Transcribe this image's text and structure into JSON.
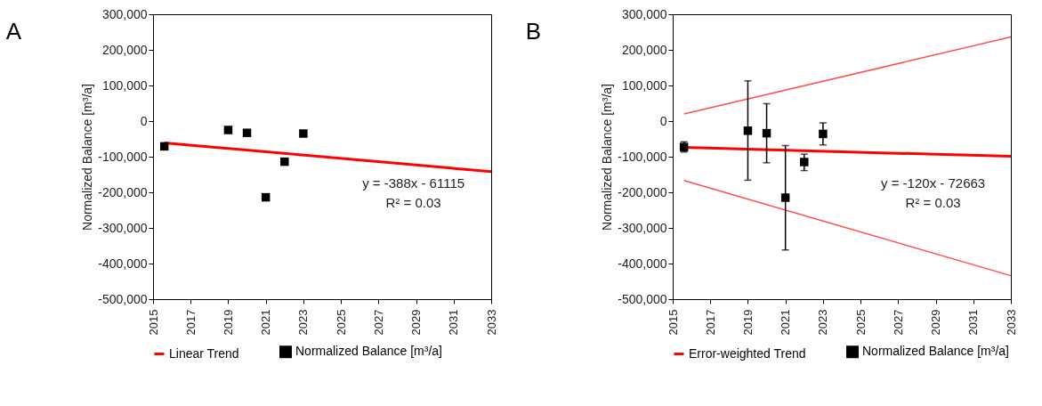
{
  "chart_data": [
    {
      "type": "scatter",
      "title": "A",
      "ylabel": "Normalized Balance [m³/a]",
      "xlim": [
        2015,
        2033
      ],
      "xticks": [
        2015,
        2017,
        2019,
        2021,
        2023,
        2025,
        2027,
        2029,
        2031,
        2033
      ],
      "ylim": [
        -500000,
        300000
      ],
      "yticks": [
        {
          "value": -500000,
          "label": "-500,000"
        },
        {
          "value": -400000,
          "label": "-400,000"
        },
        {
          "value": -300000,
          "label": "-300,000"
        },
        {
          "value": -200000,
          "label": "-200,000"
        },
        {
          "value": -100000,
          "label": "-100,000"
        },
        0,
        {
          "value": 100000,
          "label": "100,000"
        },
        {
          "value": 200000,
          "label": "200,000"
        },
        {
          "value": 300000,
          "label": "300,000"
        }
      ],
      "legend": "bottom",
      "grid": false,
      "annotations": [
        "y = -388x - 61115",
        "R² = 0.03"
      ],
      "series": [
        {
          "name": "Linear Trend",
          "type": "line",
          "color": "#ff0000",
          "x": [
            2015.6,
            2033
          ],
          "values": [
            -61000,
            -142000
          ]
        },
        {
          "name": "Normalized Balance [m³/a]",
          "color": "#000000",
          "marker": "square",
          "x": [
            2015.6,
            2019,
            2020,
            2021,
            2022,
            2023
          ],
          "values": [
            -71000,
            -25000,
            -33000,
            -214000,
            -114000,
            -35000
          ]
        }
      ]
    },
    {
      "type": "scatter",
      "title": "B",
      "ylabel": "Normalized Balance [m³/a]",
      "xlim": [
        2015,
        2033
      ],
      "xticks": [
        2015,
        2017,
        2019,
        2021,
        2023,
        2025,
        2027,
        2029,
        2031,
        2033
      ],
      "ylim": [
        -500000,
        300000
      ],
      "yticks": [
        {
          "value": -500000,
          "label": "-500,000"
        },
        {
          "value": -400000,
          "label": "-400,000"
        },
        {
          "value": -300000,
          "label": "-300,000"
        },
        {
          "value": -200000,
          "label": "-200,000"
        },
        {
          "value": -100000,
          "label": "-100,000"
        },
        0,
        {
          "value": 100000,
          "label": "100,000"
        },
        {
          "value": 200000,
          "label": "200,000"
        },
        {
          "value": 300000,
          "label": "300,000"
        }
      ],
      "legend": "bottom",
      "grid": false,
      "annotations": [
        "y = -120x - 72663",
        "R² = 0.03"
      ],
      "series": [
        {
          "name": "Error-weighted Trend",
          "type": "line",
          "color": "#ff0000",
          "x": [
            2015.6,
            2033
          ],
          "values": [
            -74000,
            -99000
          ]
        },
        {
          "type": "line",
          "color": "#ff5050",
          "x": [
            2015.6,
            2033
          ],
          "values": [
            20000,
            236000
          ]
        },
        {
          "type": "line",
          "color": "#ff5050",
          "x": [
            2015.6,
            2033
          ],
          "values": [
            -167000,
            -434000
          ]
        },
        {
          "name": "Normalized Balance [m³/a]",
          "color": "#000000",
          "marker": "square",
          "x": [
            2015.6,
            2019,
            2020,
            2021,
            2022,
            2023
          ],
          "values": [
            -73000,
            -27000,
            -34000,
            -215000,
            -115000,
            -36000
          ],
          "errors": [
            [
              -87000,
              -58000
            ],
            [
              -166000,
              113000
            ],
            [
              -117000,
              49000
            ],
            [
              -362000,
              -69000
            ],
            [
              -139000,
              -93000
            ],
            [
              -67000,
              -5000
            ]
          ]
        }
      ]
    }
  ]
}
